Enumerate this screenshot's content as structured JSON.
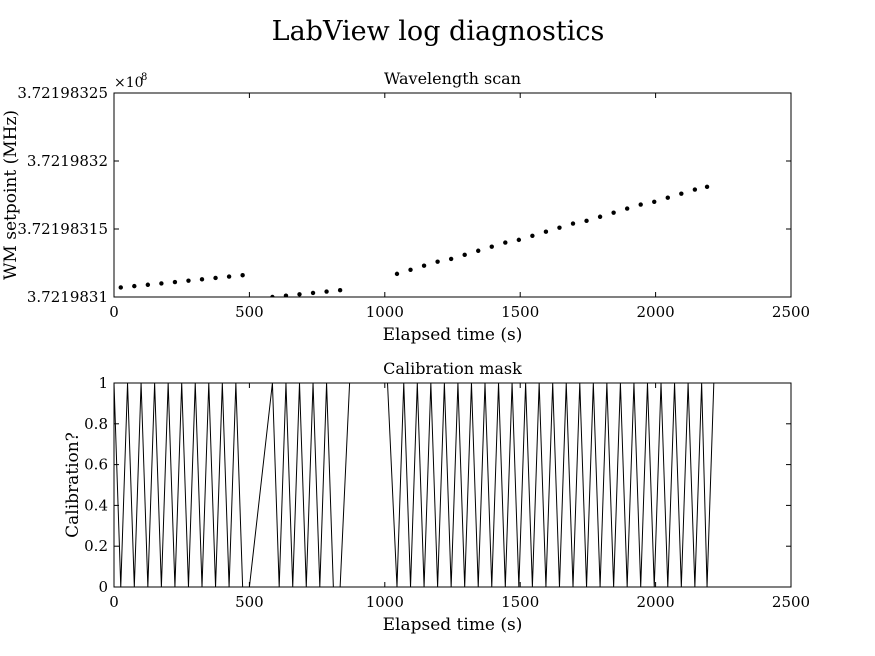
{
  "suptitle": "LabView log diagnostics",
  "chart_data": [
    {
      "type": "scatter",
      "title": "Wavelength scan",
      "xlabel": "Elapsed time (s)",
      "ylabel": "WM setpoint (MHz)",
      "offset_label": "×10",
      "offset_exponent": "8",
      "xlim": [
        0,
        2500
      ],
      "ylim": [
        3.7219831,
        3.72198325
      ],
      "xticks": [
        0,
        500,
        1000,
        1500,
        2000,
        2500
      ],
      "xtick_labels": [
        "0",
        "500",
        "1000",
        "1500",
        "2000",
        "2500"
      ],
      "yticks": [
        3.7219831,
        3.72198315,
        3.7219832,
        3.72198325
      ],
      "ytick_labels": [
        "3.7219831",
        "3.72198315",
        "3.7219832",
        "3.72198325"
      ],
      "grid": false,
      "series": [
        {
          "x": [
            25,
            75,
            125,
            175,
            225,
            275,
            325,
            375,
            425,
            475,
            585,
            635,
            685,
            735,
            785,
            835,
            1045,
            1095,
            1145,
            1195,
            1245,
            1295,
            1345,
            1395,
            1445,
            1495,
            1545,
            1595,
            1645,
            1695,
            1745,
            1795,
            1845,
            1895,
            1945,
            1995,
            2045,
            2095,
            2145,
            2190
          ],
          "y": [
            3.721983107,
            3.721983108,
            3.721983109,
            3.72198311,
            3.721983111,
            3.721983112,
            3.721983113,
            3.721983114,
            3.721983115,
            3.721983116,
            3.7219831,
            3.721983101,
            3.721983102,
            3.721983103,
            3.721983104,
            3.721983105,
            3.721983117,
            3.72198312,
            3.721983123,
            3.721983126,
            3.721983128,
            3.721983131,
            3.721983134,
            3.721983137,
            3.72198314,
            3.721983142,
            3.721983145,
            3.721983148,
            3.721983151,
            3.721983154,
            3.721983156,
            3.721983159,
            3.721983162,
            3.721983165,
            3.721983168,
            3.72198317,
            3.721983173,
            3.721983176,
            3.721983179,
            3.721983181
          ]
        }
      ]
    },
    {
      "type": "line",
      "title": "Calibration mask",
      "xlabel": "Elapsed time (s)",
      "ylabel": "Calibration?",
      "xlim": [
        0,
        2500
      ],
      "ylim": [
        0,
        1
      ],
      "xticks": [
        0,
        500,
        1000,
        1500,
        2000,
        2500
      ],
      "xtick_labels": [
        "0",
        "500",
        "1000",
        "1500",
        "2000",
        "2500"
      ],
      "yticks": [
        0,
        0.2,
        0.4,
        0.6,
        0.8,
        1
      ],
      "ytick_labels": [
        "0",
        "0.2",
        "0.4",
        "0.6",
        "0.8",
        "1"
      ],
      "grid": false,
      "series": [
        {
          "x": [
            0,
            25,
            50,
            75,
            100,
            125,
            150,
            175,
            200,
            225,
            250,
            275,
            300,
            325,
            350,
            375,
            400,
            425,
            450,
            475,
            500,
            585,
            610,
            635,
            660,
            685,
            710,
            735,
            760,
            785,
            810,
            835,
            870,
            1010,
            1045,
            1070,
            1095,
            1120,
            1145,
            1170,
            1195,
            1220,
            1245,
            1270,
            1295,
            1320,
            1345,
            1370,
            1395,
            1420,
            1445,
            1470,
            1495,
            1520,
            1545,
            1570,
            1595,
            1620,
            1645,
            1670,
            1695,
            1720,
            1745,
            1770,
            1795,
            1820,
            1845,
            1870,
            1895,
            1920,
            1945,
            1970,
            1995,
            2020,
            2045,
            2070,
            2095,
            2120,
            2145,
            2170,
            2190,
            2215
          ],
          "y": [
            1,
            0,
            1,
            0,
            1,
            0,
            1,
            0,
            1,
            0,
            1,
            0,
            1,
            0,
            1,
            0,
            1,
            0,
            1,
            0,
            0,
            1,
            0,
            1,
            0,
            1,
            0,
            1,
            0,
            1,
            0,
            0,
            1,
            1,
            0,
            1,
            0,
            1,
            0,
            1,
            0,
            1,
            0,
            1,
            0,
            1,
            0,
            1,
            0,
            1,
            0,
            1,
            0,
            1,
            0,
            1,
            0,
            1,
            0,
            1,
            0,
            1,
            0,
            1,
            0,
            1,
            0,
            1,
            0,
            1,
            0,
            1,
            0,
            1,
            0,
            1,
            0,
            1,
            0,
            1,
            0,
            1
          ]
        }
      ]
    }
  ]
}
